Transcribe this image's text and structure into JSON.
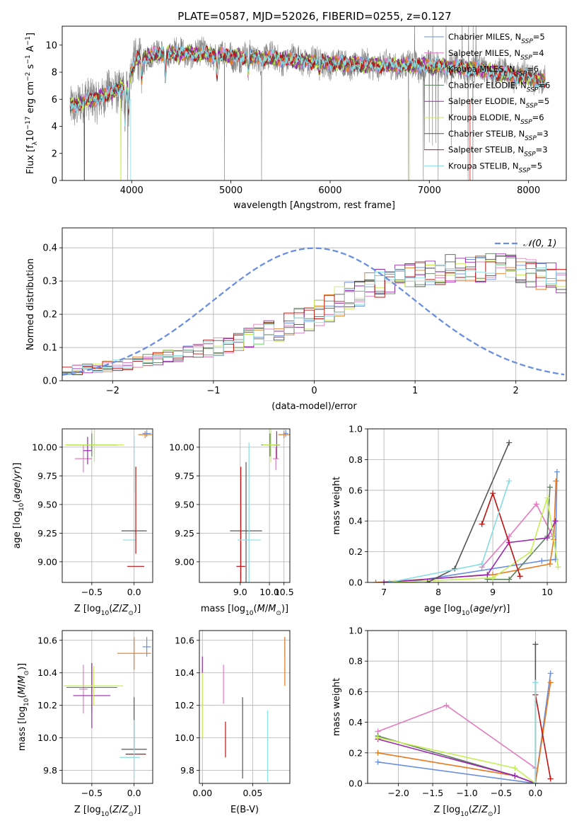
{
  "figure_title": "PLATE=0587, MJD=52026, FIBERID=0255, z=0.127",
  "colors": {
    "Chabrier MILES": "#6a8fe0",
    "Salpeter MILES": "#e37bc0",
    "Kroupa MILES": "#e57a1e",
    "Chabrier ELODIE": "#5f7f5f",
    "Salpeter ELODIE": "#9a28b0",
    "Kroupa ELODIE": "#c5ee52",
    "Chabrier STELIB": "#555555",
    "Salpeter STELIB": "#c01010",
    "Kroupa STELIB": "#85dde3",
    "data": "#808080",
    "normal": "#6a8fe0"
  },
  "chart_data": [
    {
      "id": "spectrum",
      "type": "line",
      "xlabel": "wavelength [Angstrom, rest frame]",
      "ylabel": "Flux [f",
      "xlim": [
        3300,
        8380
      ],
      "ylim": [
        0,
        11.4
      ],
      "xticks": [
        4000,
        5000,
        6000,
        7000,
        8000
      ],
      "yticks": [
        0,
        2,
        4,
        6,
        8,
        10
      ],
      "legend_position": "top-right",
      "legend": [
        {
          "model": "Chabrier MILES",
          "n": "5"
        },
        {
          "model": "Salpeter MILES",
          "n": "4"
        },
        {
          "model": "Kroupa MILES",
          "n": "6"
        },
        {
          "model": "Chabrier ELODIE",
          "n": "6"
        },
        {
          "model": "Salpeter ELODIE",
          "n": "5"
        },
        {
          "model": "Kroupa ELODIE",
          "n": "6"
        },
        {
          "model": "Chabrier STELIB",
          "n": "3"
        },
        {
          "model": "Salpeter STELIB",
          "n": "3"
        },
        {
          "model": "Kroupa STELIB",
          "n": "5"
        }
      ],
      "continuum_approx": [
        [
          3380,
          5.5
        ],
        [
          3700,
          6.2
        ],
        [
          3950,
          7.0
        ],
        [
          4050,
          9.0
        ],
        [
          4300,
          9.4
        ],
        [
          4600,
          9.4
        ],
        [
          5000,
          9.2
        ],
        [
          5500,
          9.0
        ],
        [
          6000,
          8.7
        ],
        [
          6500,
          8.5
        ],
        [
          7000,
          8.5
        ],
        [
          7500,
          8.2
        ],
        [
          8000,
          7.6
        ],
        [
          8170,
          7.3
        ]
      ]
    },
    {
      "id": "residuals",
      "type": "histogram",
      "xlabel": "(data-model)/error",
      "ylabel": "Normed distribution",
      "xlim": [
        -2.5,
        2.5
      ],
      "ylim": [
        0,
        0.46
      ],
      "xticks": [
        -2,
        -1,
        0,
        1,
        2
      ],
      "yticks": [
        0.0,
        0.1,
        0.2,
        0.3,
        0.4
      ],
      "legend_position": "top-right",
      "bin_width": 0.1,
      "bin_start": -2.5,
      "mean_profile": [
        0.03,
        0.033,
        0.036,
        0.039,
        0.043,
        0.047,
        0.051,
        0.055,
        0.06,
        0.065,
        0.072,
        0.078,
        0.084,
        0.09,
        0.096,
        0.102,
        0.11,
        0.118,
        0.128,
        0.138,
        0.146,
        0.154,
        0.166,
        0.178,
        0.192,
        0.206,
        0.222,
        0.238,
        0.252,
        0.266,
        0.28,
        0.292,
        0.3,
        0.31,
        0.318,
        0.325,
        0.33,
        0.334,
        0.337,
        0.339,
        0.34,
        0.34,
        0.339,
        0.337,
        0.334,
        0.33,
        0.325,
        0.318,
        0.31,
        0.3,
        0.292,
        0.28,
        0.266,
        0.252,
        0.238,
        0.226,
        0.212,
        0.198,
        0.186,
        0.174,
        0.162,
        0.15,
        0.14,
        0.13,
        0.12,
        0.112,
        0.104,
        0.096,
        0.09,
        0.084,
        0.078,
        0.072,
        0.066,
        0.061,
        0.056,
        0.052,
        0.048,
        0.044,
        0.04,
        0.037,
        0.034,
        0.032,
        0.03,
        0.028,
        0.026,
        0.025,
        0.024,
        0.023,
        0.022,
        0.021,
        0.02,
        0.02,
        0.019,
        0.019,
        0.018,
        0.018,
        0.017,
        0.017,
        0.017,
        0.016
      ],
      "gaussian_label": "𝒩(0, 1)"
    },
    {
      "id": "age_vs_Z",
      "type": "errorbar",
      "xlabel": "Z [log",
      "ylabel": "age  [log",
      "xlim": [
        -0.85,
        0.22
      ],
      "ylim": [
        8.82,
        10.16
      ],
      "xticks": [
        -0.5,
        0.0
      ],
      "yticks": [
        9.0,
        9.25,
        9.5,
        9.75,
        10.0
      ],
      "points": [
        {
          "model": "Chabrier MILES",
          "x": 0.15,
          "xerr": 0.05,
          "y": 10.12,
          "yerr": 0.03
        },
        {
          "model": "Salpeter MILES",
          "x": -0.6,
          "xerr": 0.1,
          "y": 9.9,
          "yerr": 0.12
        },
        {
          "model": "Kroupa MILES",
          "x": 0.13,
          "xerr": 0.08,
          "y": 10.11,
          "yerr": 0.03
        },
        {
          "model": "Chabrier ELODIE",
          "x": -0.5,
          "xerr": 0.3,
          "y": 10.02,
          "yerr": 0.1
        },
        {
          "model": "Salpeter ELODIE",
          "x": -0.55,
          "xerr": 0.05,
          "y": 9.97,
          "yerr": 0.12
        },
        {
          "model": "Kroupa ELODIE",
          "x": -0.47,
          "xerr": 0.35,
          "y": 10.02,
          "yerr": 0.15
        },
        {
          "model": "Chabrier STELIB",
          "x": 0.0,
          "xerr": 0.15,
          "y": 9.27,
          "yerr": 0.0
        },
        {
          "model": "Salpeter STELIB",
          "x": 0.02,
          "xerr": 0.1,
          "y": 8.96,
          "yerr": 0.0
        },
        {
          "model": "Kroupa STELIB",
          "x": -0.05,
          "xerr": 0.08,
          "y": 9.19,
          "yerr": 0.0
        },
        {
          "model": "Salpeter STELIB",
          "x": 0.02,
          "xerr": 0.0,
          "y": 9.45,
          "yerr": 0.38
        },
        {
          "model": "Kroupa STELIB",
          "x": 0.0,
          "xerr": 0.0,
          "y": 9.85,
          "yerr": 0.25
        }
      ]
    },
    {
      "id": "age_vs_mass",
      "type": "errorbar",
      "xlabel": "mass [log",
      "ylabel": "",
      "xlim": [
        7.6,
        10.7
      ],
      "ylim": [
        8.82,
        10.16
      ],
      "xticks": [
        9.0,
        10.0,
        10.5
      ],
      "yticks": [
        9.0,
        9.25,
        9.5,
        9.75,
        10.0
      ],
      "points": [
        {
          "model": "Chabrier MILES",
          "x": 10.56,
          "xerr": 0.08,
          "y": 10.12,
          "yerr": 0.03
        },
        {
          "model": "Salpeter MILES",
          "x": 10.22,
          "xerr": 0.1,
          "y": 9.9,
          "yerr": 0.1
        },
        {
          "model": "Kroupa MILES",
          "x": 10.5,
          "xerr": 0.2,
          "y": 10.11,
          "yerr": 0.03
        },
        {
          "model": "Chabrier ELODIE",
          "x": 10.02,
          "xerr": 0.3,
          "y": 10.02,
          "yerr": 0.1
        },
        {
          "model": "Salpeter ELODIE",
          "x": 10.25,
          "xerr": 0.1,
          "y": 10.02,
          "yerr": 0.12
        },
        {
          "model": "Kroupa ELODIE",
          "x": 10.05,
          "xerr": 0.28,
          "y": 10.02,
          "yerr": 0.15
        },
        {
          "model": "Chabrier STELIB",
          "x": 9.2,
          "xerr": 0.55,
          "y": 9.27,
          "yerr": 0.6
        },
        {
          "model": "Salpeter STELIB",
          "x": 9.02,
          "xerr": 0.15,
          "y": 8.96,
          "yerr": 0.87
        },
        {
          "model": "Kroupa STELIB",
          "x": 9.3,
          "xerr": 0.4,
          "y": 9.19,
          "yerr": 0.85
        }
      ]
    },
    {
      "id": "weight_vs_age",
      "type": "line",
      "xlabel": "age  [log",
      "ylabel": "mass weight",
      "xlim": [
        6.7,
        10.35
      ],
      "ylim": [
        0,
        1.0
      ],
      "xticks": [
        7,
        8,
        9,
        10
      ],
      "yticks": [
        0.0,
        0.2,
        0.4,
        0.6,
        0.8,
        1.0
      ],
      "series": [
        {
          "model": "Chabrier MILES",
          "x": [
            7.4,
            9.9,
            10.15,
            10.18
          ],
          "y": [
            0.0,
            0.14,
            0.15,
            0.72
          ]
        },
        {
          "model": "Salpeter MILES",
          "x": [
            8.8,
            9.3,
            9.8,
            10.1,
            10.15
          ],
          "y": [
            0.1,
            0.3,
            0.51,
            0.3,
            0.4
          ]
        },
        {
          "model": "Kroupa MILES",
          "x": [
            6.85,
            9.0,
            10.05,
            10.12,
            10.16
          ],
          "y": [
            0.0,
            0.05,
            0.12,
            0.28,
            0.66
          ]
        },
        {
          "model": "Chabrier ELODIE",
          "x": [
            8.9,
            9.3,
            10.0,
            10.05
          ],
          "y": [
            0.02,
            0.02,
            0.3,
            0.62
          ]
        },
        {
          "model": "Salpeter ELODIE",
          "x": [
            7.0,
            8.9,
            9.3,
            10.0,
            10.15
          ],
          "y": [
            0.0,
            0.05,
            0.26,
            0.29,
            0.4
          ]
        },
        {
          "model": "Kroupa ELODIE",
          "x": [
            7.2,
            9.0,
            9.7,
            10.0,
            10.2
          ],
          "y": [
            0.0,
            0.03,
            0.2,
            0.55,
            0.1
          ]
        },
        {
          "model": "Chabrier STELIB",
          "x": [
            7.8,
            8.3,
            9.3
          ],
          "y": [
            0.0,
            0.09,
            0.91
          ]
        },
        {
          "model": "Salpeter STELIB",
          "x": [
            8.8,
            9.0,
            9.5
          ],
          "y": [
            0.38,
            0.58,
            0.04
          ]
        },
        {
          "model": "Kroupa STELIB",
          "x": [
            7.1,
            8.8,
            9.3
          ],
          "y": [
            0.0,
            0.12,
            0.66
          ]
        }
      ]
    },
    {
      "id": "mass_vs_Z",
      "type": "errorbar",
      "xlabel": "Z [log",
      "ylabel": "mass [log",
      "xlim": [
        -0.85,
        0.22
      ],
      "ylim": [
        9.72,
        10.66
      ],
      "xticks": [
        -0.5,
        0.0
      ],
      "yticks": [
        9.8,
        10.0,
        10.2,
        10.4,
        10.6
      ],
      "points": [
        {
          "model": "Chabrier MILES",
          "x": 0.15,
          "xerr": 0.05,
          "y": 10.56,
          "yerr": 0.06
        },
        {
          "model": "Salpeter MILES",
          "x": -0.6,
          "xerr": 0.05,
          "y": 10.3,
          "yerr": 0.15
        },
        {
          "model": "Kroupa MILES",
          "x": 0.0,
          "xerr": 0.2,
          "y": 10.52,
          "yerr": 0.1
        },
        {
          "model": "Chabrier ELODIE",
          "x": -0.5,
          "xerr": 0.3,
          "y": 10.31,
          "yerr": 0.15
        },
        {
          "model": "Salpeter ELODIE",
          "x": -0.5,
          "xerr": 0.22,
          "y": 10.26,
          "yerr": 0.2
        },
        {
          "model": "Kroupa ELODIE",
          "x": -0.48,
          "xerr": 0.35,
          "y": 10.32,
          "yerr": 0.12
        },
        {
          "model": "Chabrier STELIB",
          "x": 0.0,
          "xerr": 0.15,
          "y": 9.93,
          "yerr": 0.0
        },
        {
          "model": "Salpeter STELIB",
          "x": 0.02,
          "xerr": 0.12,
          "y": 9.9,
          "yerr": 0.0
        },
        {
          "model": "Kroupa STELIB",
          "x": -0.05,
          "xerr": 0.12,
          "y": 9.88,
          "yerr": 0.0
        },
        {
          "model": "Chabrier STELIB",
          "x": 0.0,
          "xerr": 0.0,
          "y": 10.09,
          "yerr": 0.16
        },
        {
          "model": "Kroupa STELIB",
          "x": 0.0,
          "xerr": 0.0,
          "y": 9.93,
          "yerr": 0.18
        }
      ]
    },
    {
      "id": "mass_vs_EBV",
      "type": "errorbar",
      "xlabel": "E(B-V)",
      "ylabel": "",
      "xlim": [
        -0.003,
        0.087
      ],
      "ylim": [
        9.72,
        10.66
      ],
      "xticks": [
        0.0,
        0.05
      ],
      "yticks": [
        9.8,
        10.0,
        10.2,
        10.4,
        10.6
      ],
      "points": [
        {
          "model": "Chabrier MILES",
          "x": 0.082,
          "xerr": 0.0,
          "y": 10.56,
          "yerr": 0.06
        },
        {
          "model": "Salpeter MILES",
          "x": 0.021,
          "xerr": 0.0,
          "y": 10.33,
          "yerr": 0.12
        },
        {
          "model": "Kroupa MILES",
          "x": 0.082,
          "xerr": 0.0,
          "y": 10.47,
          "yerr": 0.15
        },
        {
          "model": "Salpeter ELODIE",
          "x": 0.0,
          "xerr": 0.0,
          "y": 10.45,
          "yerr": 0.05
        },
        {
          "model": "Kroupa ELODIE",
          "x": 0.0,
          "xerr": 0.0,
          "y": 10.2,
          "yerr": 0.2
        },
        {
          "model": "Salpeter STELIB",
          "x": 0.023,
          "xerr": 0.0,
          "y": 9.99,
          "yerr": 0.11
        },
        {
          "model": "Chabrier STELIB",
          "x": 0.04,
          "xerr": 0.0,
          "y": 10.0,
          "yerr": 0.25
        },
        {
          "model": "Kroupa STELIB",
          "x": 0.065,
          "xerr": 0.0,
          "y": 9.95,
          "yerr": 0.22
        }
      ]
    },
    {
      "id": "weight_vs_Z",
      "type": "line",
      "xlabel": "Z [log",
      "ylabel": "mass weight",
      "xlim": [
        -2.45,
        0.45
      ],
      "ylim": [
        0,
        1.0
      ],
      "xticks": [
        -2.0,
        -1.5,
        -1.0,
        -0.5,
        0.0
      ],
      "yticks": [
        0.0,
        0.2,
        0.4,
        0.6,
        0.8,
        1.0
      ],
      "series": [
        {
          "model": "Chabrier MILES",
          "x": [
            -2.3,
            0.0,
            0.22
          ],
          "y": [
            0.14,
            0.0,
            0.72
          ]
        },
        {
          "model": "Salpeter MILES",
          "x": [
            -2.3,
            -1.3,
            0.0,
            0.0
          ],
          "y": [
            0.34,
            0.51,
            0.1,
            0.0
          ]
        },
        {
          "model": "Kroupa MILES",
          "x": [
            -2.3,
            -0.3,
            0.0,
            0.22
          ],
          "y": [
            0.2,
            0.05,
            0.0,
            0.66
          ]
        },
        {
          "model": "Chabrier ELODIE",
          "x": [
            -2.3,
            -0.3,
            0.0
          ],
          "y": [
            0.31,
            0.05,
            0.0
          ]
        },
        {
          "model": "Salpeter ELODIE",
          "x": [
            -2.3,
            -0.3,
            0.0
          ],
          "y": [
            0.29,
            0.05,
            0.0
          ]
        },
        {
          "model": "Kroupa ELODIE",
          "x": [
            -2.3,
            -0.3,
            0.0
          ],
          "y": [
            0.3,
            0.1,
            0.0
          ]
        },
        {
          "model": "Chabrier STELIB",
          "x": [
            0.0,
            0.0
          ],
          "y": [
            0.0,
            0.91
          ]
        },
        {
          "model": "Salpeter STELIB",
          "x": [
            0.0,
            0.22
          ],
          "y": [
            0.58,
            0.03
          ]
        },
        {
          "model": "Kroupa STELIB",
          "x": [
            0.0,
            0.0
          ],
          "y": [
            0.0,
            0.66
          ]
        }
      ]
    }
  ]
}
